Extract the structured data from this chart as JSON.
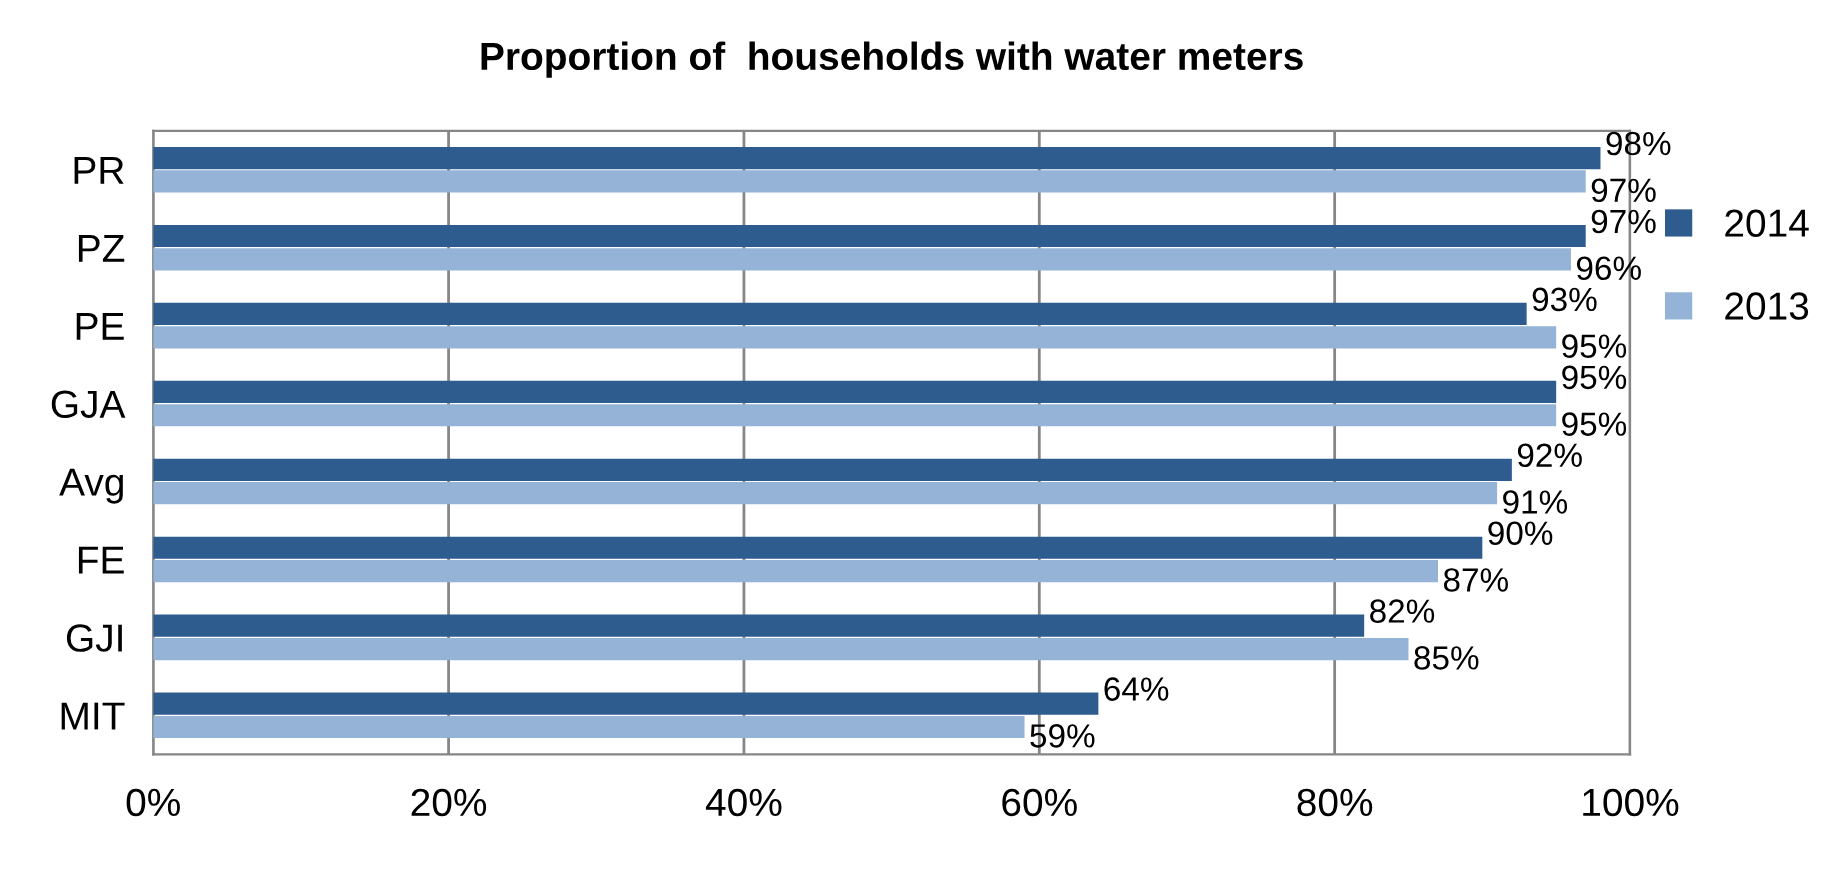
{
  "chart_data": {
    "type": "bar",
    "orientation": "horizontal",
    "title": "Proportion of  households with water meters",
    "categories": [
      "PR",
      "PZ",
      "PE",
      "GJA",
      "Avg",
      "FE",
      "GJI",
      "MIT"
    ],
    "series": [
      {
        "name": "2014",
        "color": "#2f5c8f",
        "values": [
          98,
          97,
          93,
          95,
          92,
          90,
          82,
          64
        ],
        "value_labels": [
          "98%",
          "97%",
          "93%",
          "95%",
          "92%",
          "90%",
          "82%",
          "64%"
        ]
      },
      {
        "name": "2013",
        "color": "#95b3d7",
        "values": [
          97,
          96,
          95,
          95,
          91,
          87,
          85,
          59
        ],
        "value_labels": [
          "97%",
          "96%",
          "95%",
          "95%",
          "91%",
          "87%",
          "85%",
          "59%"
        ]
      }
    ],
    "xlim": [
      0,
      100
    ],
    "xticks": [
      {
        "value": 0,
        "label": "0%"
      },
      {
        "value": 20,
        "label": "20%"
      },
      {
        "value": 40,
        "label": "40%"
      },
      {
        "value": 60,
        "label": "60%"
      },
      {
        "value": 80,
        "label": "80%"
      },
      {
        "value": 100,
        "label": "100%"
      }
    ],
    "grid": "x",
    "legend": "right"
  }
}
